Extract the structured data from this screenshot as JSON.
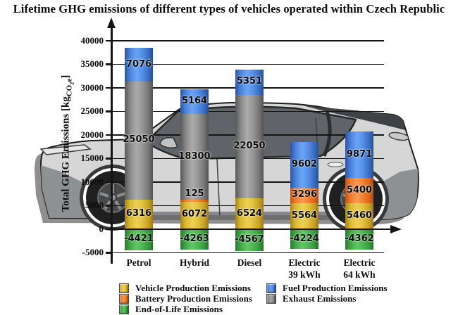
{
  "title": "Lifetime GHG emissions of different types of vehicles operated within Czech Republic",
  "ylabel_parts": {
    "prefix": "Total GHG Emissions [kg",
    "sub_co": "CO",
    "sub_2": "2",
    "sub_e": "e",
    "suffix": "]"
  },
  "chart_data": {
    "type": "bar",
    "stacked": true,
    "title": "Lifetime GHG emissions of different types of vehicles operated within Czech Republic",
    "xlabel": "",
    "ylabel": "Total GHG Emissions [kgCO2e]",
    "ylim": [
      -5000,
      40000
    ],
    "yticks": [
      40000,
      35000,
      30000,
      25000,
      20000,
      15000,
      10000,
      5000,
      0,
      -5000
    ],
    "grid": true,
    "legend_position": "bottom",
    "background_art": "light-gray crossover SUV side view",
    "categories": [
      "Petrol",
      "Hybrid",
      "Diesel",
      "Electric\n39 kWh",
      "Electric\n64 kWh"
    ],
    "series": [
      {
        "key": "vehicle",
        "name": "Vehicle Production Emissions",
        "color": "#e2bc35",
        "values": [
          6316,
          6072,
          6524,
          5564,
          5460
        ]
      },
      {
        "key": "battery",
        "name": "Battery Production Emissions",
        "color": "#f07c30",
        "values": [
          0,
          125,
          0,
          3296,
          5400
        ]
      },
      {
        "key": "exhaust",
        "name": "Exhaust Emissions",
        "color": "#8f8f8f",
        "values": [
          25050,
          18300,
          22050,
          0,
          0
        ]
      },
      {
        "key": "fuel",
        "name": "Fuel Production Emissions",
        "color": "#4f8ce8",
        "values": [
          7076,
          5164,
          5351,
          9602,
          9871
        ]
      },
      {
        "key": "eol",
        "name": "End-of-Life Emissions",
        "color": "#47ad4a",
        "values": [
          -4421,
          -4263,
          -4567,
          -4224,
          -4362
        ]
      }
    ]
  },
  "legend": {
    "columns": [
      {
        "items": [
          {
            "key": "vehicle",
            "label": "Vehicle Production Emissions"
          },
          {
            "key": "battery",
            "label": "Battery Production Emissions"
          },
          {
            "key": "eol",
            "label": "End-of-Life Emissions"
          }
        ]
      },
      {
        "items": [
          {
            "key": "fuel",
            "label": "Fuel Production Emissions"
          },
          {
            "key": "exhaust",
            "label": "Exhaust Emissions"
          }
        ]
      }
    ]
  }
}
